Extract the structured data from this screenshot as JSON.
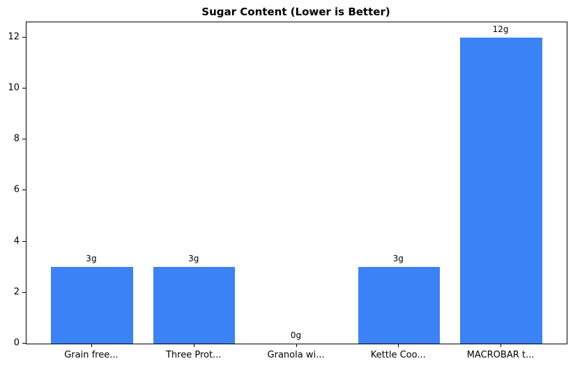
{
  "title": "Sugar Content (Lower is Better)",
  "chart_data": {
    "type": "bar",
    "title": "Sugar Content (Lower is Better)",
    "categories": [
      "Grain free...",
      "Three Prot...",
      "Granola wi...",
      "Kettle Coo...",
      "MACROBAR t..."
    ],
    "values": [
      3,
      3,
      0,
      3,
      12
    ],
    "value_labels": [
      "3g",
      "3g",
      "0g",
      "3g",
      "12g"
    ],
    "xlabel": "",
    "ylabel": "",
    "yticks": [
      0,
      2,
      4,
      6,
      8,
      10,
      12
    ],
    "ylim": [
      0,
      12.6
    ],
    "bar_color": "#3b82f6",
    "grid": false,
    "legend_position": "none",
    "background_color": "#ffffff",
    "spine_color": "#000000"
  }
}
